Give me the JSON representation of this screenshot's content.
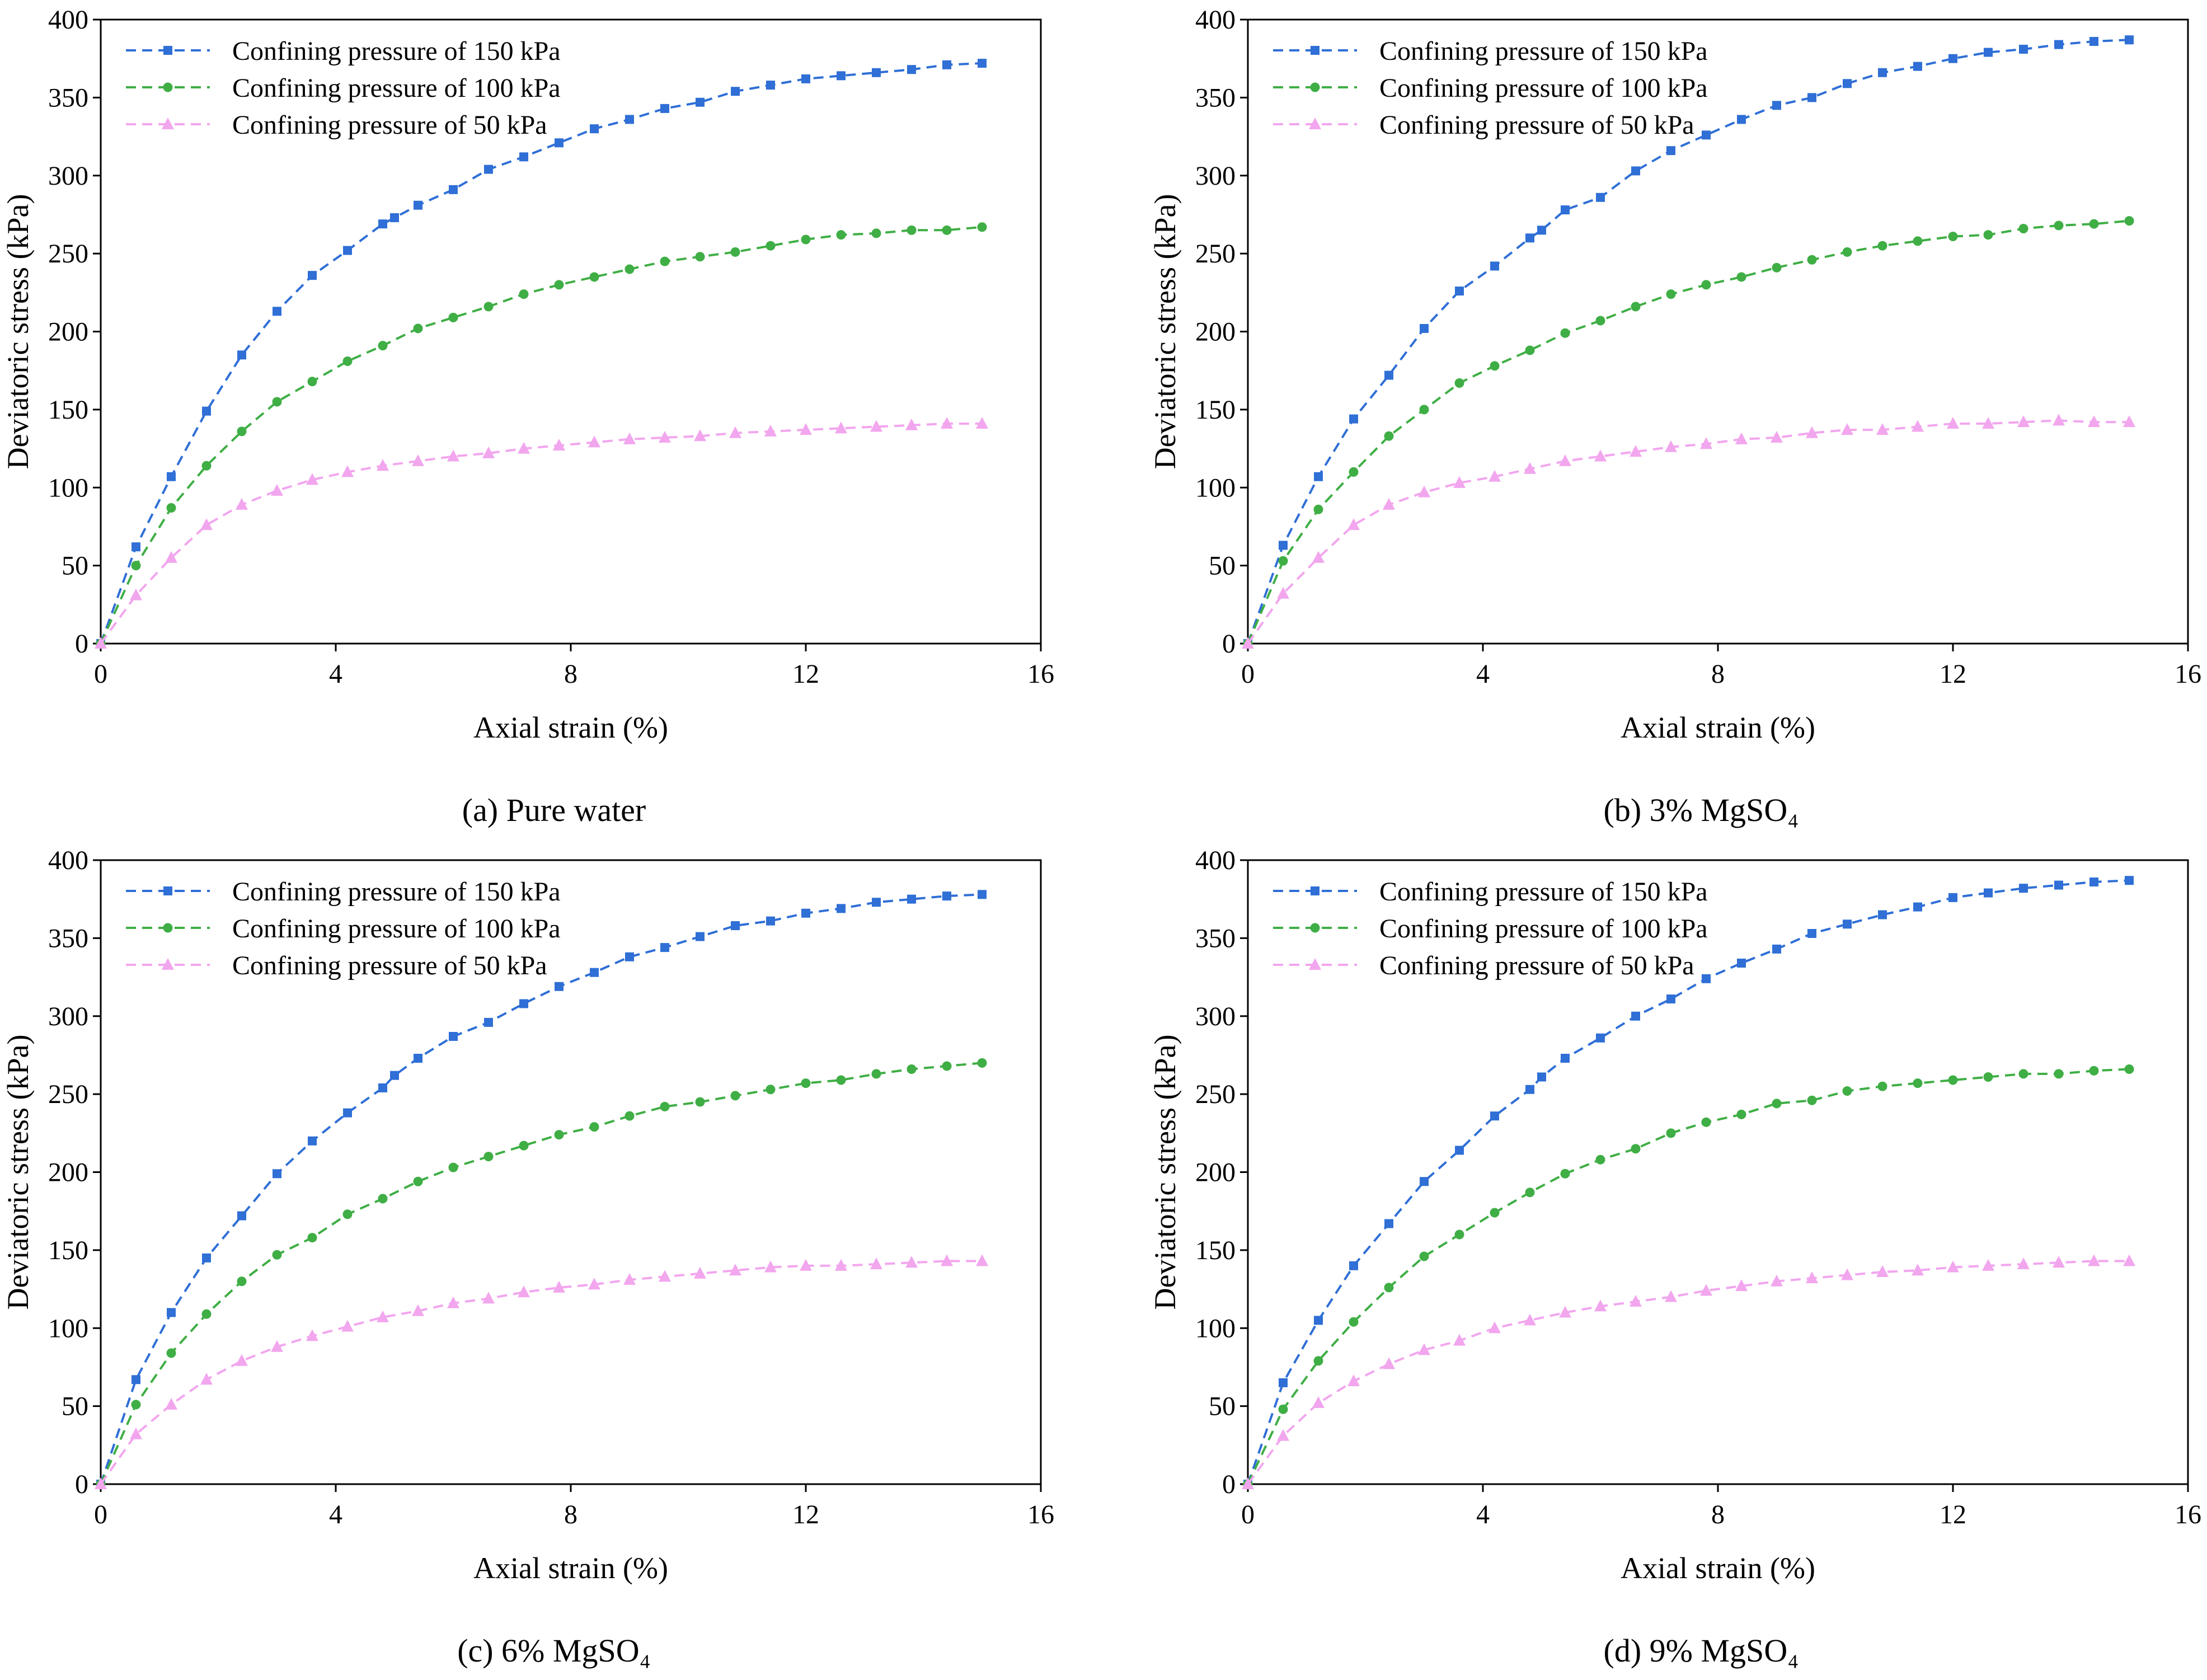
{
  "figure": {
    "panels": [
      {
        "caption": "(a) Pure water"
      },
      {
        "caption": "(b) 3% MgSO₄"
      },
      {
        "caption": "(c) 6% MgSO₄"
      },
      {
        "caption": "(d) 9% MgSO₄"
      }
    ]
  },
  "colors": {
    "cp150": "#2f6fd6",
    "cp100": "#3fae45",
    "cp50": "#f2a6ee"
  },
  "chart_data": [
    {
      "type": "line",
      "caption": "(a) Pure water",
      "xlabel": "Axial strain (%)",
      "ylabel": "Deviatoric stress (kPa)",
      "xlim": [
        0,
        16
      ],
      "ylim": [
        0,
        400
      ],
      "xticks": [
        0,
        4,
        8,
        12,
        16
      ],
      "yticks": [
        0,
        50,
        100,
        150,
        200,
        250,
        300,
        350,
        400
      ],
      "grid": false,
      "legend": "top-left",
      "series": [
        {
          "name": "Confining pressure of 150 kPa",
          "color": "#2f6fd6",
          "marker": "square",
          "line": "dashed",
          "x": [
            0,
            0.6,
            1.2,
            1.8,
            2.4,
            3.0,
            3.6,
            4.2,
            4.8,
            5.0,
            5.4,
            6.0,
            6.6,
            7.2,
            7.8,
            8.4,
            9.0,
            9.6,
            10.2,
            10.8,
            11.4,
            12.0,
            12.6,
            13.2,
            13.8,
            14.4,
            15.0
          ],
          "y": [
            0,
            62,
            107,
            149,
            185,
            213,
            236,
            252,
            269,
            273,
            281,
            291,
            304,
            312,
            321,
            330,
            336,
            343,
            347,
            354,
            358,
            362,
            364,
            366,
            368,
            371,
            372
          ]
        },
        {
          "name": "Confining pressure of 100 kPa",
          "color": "#3fae45",
          "marker": "circle",
          "line": "dashed",
          "x": [
            0,
            0.6,
            1.2,
            1.8,
            2.4,
            3.0,
            3.6,
            4.2,
            4.8,
            5.4,
            6.0,
            6.6,
            7.2,
            7.8,
            8.4,
            9.0,
            9.6,
            10.2,
            10.8,
            11.4,
            12.0,
            12.6,
            13.2,
            13.8,
            14.4,
            15.0
          ],
          "y": [
            0,
            50,
            87,
            114,
            136,
            155,
            168,
            181,
            191,
            202,
            209,
            216,
            224,
            230,
            235,
            240,
            245,
            248,
            251,
            255,
            259,
            262,
            263,
            265,
            265,
            267
          ]
        },
        {
          "name": "Confining pressure of 50 kPa",
          "color": "#f2a6ee",
          "marker": "triangle",
          "line": "dashed",
          "x": [
            0,
            0.6,
            1.2,
            1.8,
            2.4,
            3.0,
            3.6,
            4.2,
            4.8,
            5.4,
            6.0,
            6.6,
            7.2,
            7.8,
            8.4,
            9.0,
            9.6,
            10.2,
            10.8,
            11.4,
            12.0,
            12.6,
            13.2,
            13.8,
            14.4,
            15.0
          ],
          "y": [
            0,
            31,
            55,
            76,
            89,
            98,
            105,
            110,
            114,
            117,
            120,
            122,
            125,
            127,
            129,
            131,
            132,
            133,
            135,
            136,
            137,
            138,
            139,
            140,
            141,
            141
          ]
        }
      ]
    },
    {
      "type": "line",
      "caption": "(b) 3% MgSO₄",
      "xlabel": "Axial strain (%)",
      "ylabel": "Deviatoric stress (kPa)",
      "xlim": [
        0,
        16
      ],
      "ylim": [
        0,
        400
      ],
      "xticks": [
        0,
        4,
        8,
        12,
        16
      ],
      "yticks": [
        0,
        50,
        100,
        150,
        200,
        250,
        300,
        350,
        400
      ],
      "grid": false,
      "legend": "top-left",
      "series": [
        {
          "name": "Confining pressure of 150 kPa",
          "color": "#2f6fd6",
          "marker": "square",
          "line": "dashed",
          "x": [
            0,
            0.6,
            1.2,
            1.8,
            2.4,
            3.0,
            3.6,
            4.2,
            4.8,
            5.0,
            5.4,
            6.0,
            6.6,
            7.2,
            7.8,
            8.4,
            9.0,
            9.6,
            10.2,
            10.8,
            11.4,
            12.0,
            12.6,
            13.2,
            13.8,
            14.4,
            15.0
          ],
          "y": [
            0,
            63,
            107,
            144,
            172,
            202,
            226,
            242,
            260,
            265,
            278,
            286,
            303,
            316,
            326,
            336,
            345,
            350,
            359,
            366,
            370,
            375,
            379,
            381,
            384,
            386,
            387
          ]
        },
        {
          "name": "Confining pressure of 100 kPa",
          "color": "#3fae45",
          "marker": "circle",
          "line": "dashed",
          "x": [
            0,
            0.6,
            1.2,
            1.8,
            2.4,
            3.0,
            3.6,
            4.2,
            4.8,
            5.4,
            6.0,
            6.6,
            7.2,
            7.8,
            8.4,
            9.0,
            9.6,
            10.2,
            10.8,
            11.4,
            12.0,
            12.6,
            13.2,
            13.8,
            14.4,
            15.0
          ],
          "y": [
            0,
            53,
            86,
            110,
            133,
            150,
            167,
            178,
            188,
            199,
            207,
            216,
            224,
            230,
            235,
            241,
            246,
            251,
            255,
            258,
            261,
            262,
            266,
            268,
            269,
            271
          ]
        },
        {
          "name": "Confining pressure of 50 kPa",
          "color": "#f2a6ee",
          "marker": "triangle",
          "line": "dashed",
          "x": [
            0,
            0.6,
            1.2,
            1.8,
            2.4,
            3.0,
            3.6,
            4.2,
            4.8,
            5.4,
            6.0,
            6.6,
            7.2,
            7.8,
            8.4,
            9.0,
            9.6,
            10.2,
            10.8,
            11.4,
            12.0,
            12.6,
            13.2,
            13.8,
            14.4,
            15.0
          ],
          "y": [
            0,
            32,
            55,
            76,
            89,
            97,
            103,
            107,
            112,
            117,
            120,
            123,
            126,
            128,
            131,
            132,
            135,
            137,
            137,
            139,
            141,
            141,
            142,
            143,
            142,
            142
          ]
        }
      ]
    },
    {
      "type": "line",
      "caption": "(c) 6% MgSO₄",
      "xlabel": "Axial strain (%)",
      "ylabel": "Deviatoric stress (kPa)",
      "xlim": [
        0,
        16
      ],
      "ylim": [
        0,
        400
      ],
      "xticks": [
        0,
        4,
        8,
        12,
        16
      ],
      "yticks": [
        0,
        50,
        100,
        150,
        200,
        250,
        300,
        350,
        400
      ],
      "grid": false,
      "legend": "top-left",
      "series": [
        {
          "name": "Confining pressure of 150 kPa",
          "color": "#2f6fd6",
          "marker": "square",
          "line": "dashed",
          "x": [
            0,
            0.6,
            1.2,
            1.8,
            2.4,
            3.0,
            3.6,
            4.2,
            4.8,
            5.0,
            5.4,
            6.0,
            6.6,
            7.2,
            7.8,
            8.4,
            9.0,
            9.6,
            10.2,
            10.8,
            11.4,
            12.0,
            12.6,
            13.2,
            13.8,
            14.4,
            15.0
          ],
          "y": [
            0,
            67,
            110,
            145,
            172,
            199,
            220,
            238,
            254,
            262,
            273,
            287,
            296,
            308,
            319,
            328,
            338,
            344,
            351,
            358,
            361,
            366,
            369,
            373,
            375,
            377,
            378
          ]
        },
        {
          "name": "Confining pressure of 100 kPa",
          "color": "#3fae45",
          "marker": "circle",
          "line": "dashed",
          "x": [
            0,
            0.6,
            1.2,
            1.8,
            2.4,
            3.0,
            3.6,
            4.2,
            4.8,
            5.4,
            6.0,
            6.6,
            7.2,
            7.8,
            8.4,
            9.0,
            9.6,
            10.2,
            10.8,
            11.4,
            12.0,
            12.6,
            13.2,
            13.8,
            14.4,
            15.0
          ],
          "y": [
            0,
            51,
            84,
            109,
            130,
            147,
            158,
            173,
            183,
            194,
            203,
            210,
            217,
            224,
            229,
            236,
            242,
            245,
            249,
            253,
            257,
            259,
            263,
            266,
            268,
            270
          ]
        },
        {
          "name": "Confining pressure of 50 kPa",
          "color": "#f2a6ee",
          "marker": "triangle",
          "line": "dashed",
          "x": [
            0,
            0.6,
            1.2,
            1.8,
            2.4,
            3.0,
            3.6,
            4.2,
            4.8,
            5.4,
            6.0,
            6.6,
            7.2,
            7.8,
            8.4,
            9.0,
            9.6,
            10.2,
            10.8,
            11.4,
            12.0,
            12.6,
            13.2,
            13.8,
            14.4,
            15.0
          ],
          "y": [
            0,
            32,
            51,
            67,
            79,
            88,
            95,
            101,
            107,
            111,
            116,
            119,
            123,
            126,
            128,
            131,
            133,
            135,
            137,
            139,
            140,
            140,
            141,
            142,
            143,
            143
          ]
        }
      ]
    },
    {
      "type": "line",
      "caption": "(d) 9% MgSO₄",
      "xlabel": "Axial strain (%)",
      "ylabel": "Deviatoric stress (kPa)",
      "xlim": [
        0,
        16
      ],
      "ylim": [
        0,
        400
      ],
      "xticks": [
        0,
        4,
        8,
        12,
        16
      ],
      "yticks": [
        0,
        50,
        100,
        150,
        200,
        250,
        300,
        350,
        400
      ],
      "grid": false,
      "legend": "top-left",
      "series": [
        {
          "name": "Confining pressure of 150 kPa",
          "color": "#2f6fd6",
          "marker": "square",
          "line": "dashed",
          "x": [
            0,
            0.6,
            1.2,
            1.8,
            2.4,
            3.0,
            3.6,
            4.2,
            4.8,
            5.0,
            5.4,
            6.0,
            6.6,
            7.2,
            7.8,
            8.4,
            9.0,
            9.6,
            10.2,
            10.8,
            11.4,
            12.0,
            12.6,
            13.2,
            13.8,
            14.4,
            15.0
          ],
          "y": [
            0,
            65,
            105,
            140,
            167,
            194,
            214,
            236,
            253,
            261,
            273,
            286,
            300,
            311,
            324,
            334,
            343,
            353,
            359,
            365,
            370,
            376,
            379,
            382,
            384,
            386,
            387
          ]
        },
        {
          "name": "Confining pressure of 100 kPa",
          "color": "#3fae45",
          "marker": "circle",
          "line": "dashed",
          "x": [
            0,
            0.6,
            1.2,
            1.8,
            2.4,
            3.0,
            3.6,
            4.2,
            4.8,
            5.4,
            6.0,
            6.6,
            7.2,
            7.8,
            8.4,
            9.0,
            9.6,
            10.2,
            10.8,
            11.4,
            12.0,
            12.6,
            13.2,
            13.8,
            14.4,
            15.0
          ],
          "y": [
            0,
            48,
            79,
            104,
            126,
            146,
            160,
            174,
            187,
            199,
            208,
            215,
            225,
            232,
            237,
            244,
            246,
            252,
            255,
            257,
            259,
            261,
            263,
            263,
            265,
            266
          ]
        },
        {
          "name": "Confining pressure of 50 kPa",
          "color": "#f2a6ee",
          "marker": "triangle",
          "line": "dashed",
          "x": [
            0,
            0.6,
            1.2,
            1.8,
            2.4,
            3.0,
            3.6,
            4.2,
            4.8,
            5.4,
            6.0,
            6.6,
            7.2,
            7.8,
            8.4,
            9.0,
            9.6,
            10.2,
            10.8,
            11.4,
            12.0,
            12.6,
            13.2,
            13.8,
            14.4,
            15.0
          ],
          "y": [
            0,
            31,
            52,
            66,
            77,
            86,
            92,
            100,
            105,
            110,
            114,
            117,
            120,
            124,
            127,
            130,
            132,
            134,
            136,
            137,
            139,
            140,
            141,
            142,
            143,
            143
          ]
        }
      ]
    }
  ]
}
